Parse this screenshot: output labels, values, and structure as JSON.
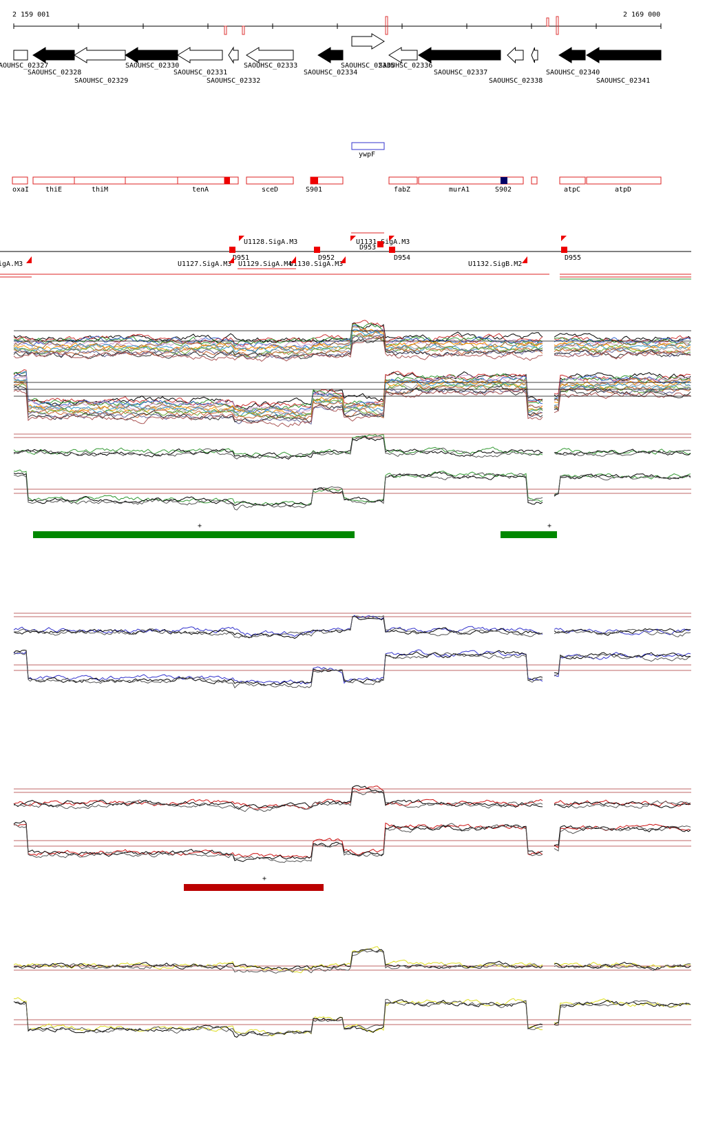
{
  "ruler": {
    "start": "2 159 001",
    "end": "2 169 000"
  },
  "genes": [
    "AOUHSC_02327",
    "SAOUHSC_02328",
    "SAOUHSC_02329",
    "SAOUHSC_02330",
    "SAOUHSC_02331",
    "SAOUHSC_02332",
    "SAOUHSC_02333",
    "SAOUHSC_02334",
    "SAOUHSC_02335",
    "SAOUHSC_02336",
    "SAOUHSC_02337",
    "SAOUHSC_02338",
    "SAOUHSC_02340",
    "SAOUHSC_02341"
  ],
  "features": [
    "ywpF"
  ],
  "operons": [
    "oxaI",
    "thiE",
    "thiM",
    "tenA",
    "sceD",
    "S901",
    "fabZ",
    "murA1",
    "S902",
    "atpC",
    "atpD"
  ],
  "promoters": [
    "igA.M3",
    "U1127.SigA.M3",
    "U1128.SigA.M3",
    "D951",
    "U1129.SigA.M4",
    "U1130.SigA.M3",
    "D952",
    "U1131.SigA.M3",
    "D953",
    "D954",
    "U1132.SigB.M2",
    "D955"
  ],
  "marks": [
    "+",
    "+",
    "+"
  ]
}
